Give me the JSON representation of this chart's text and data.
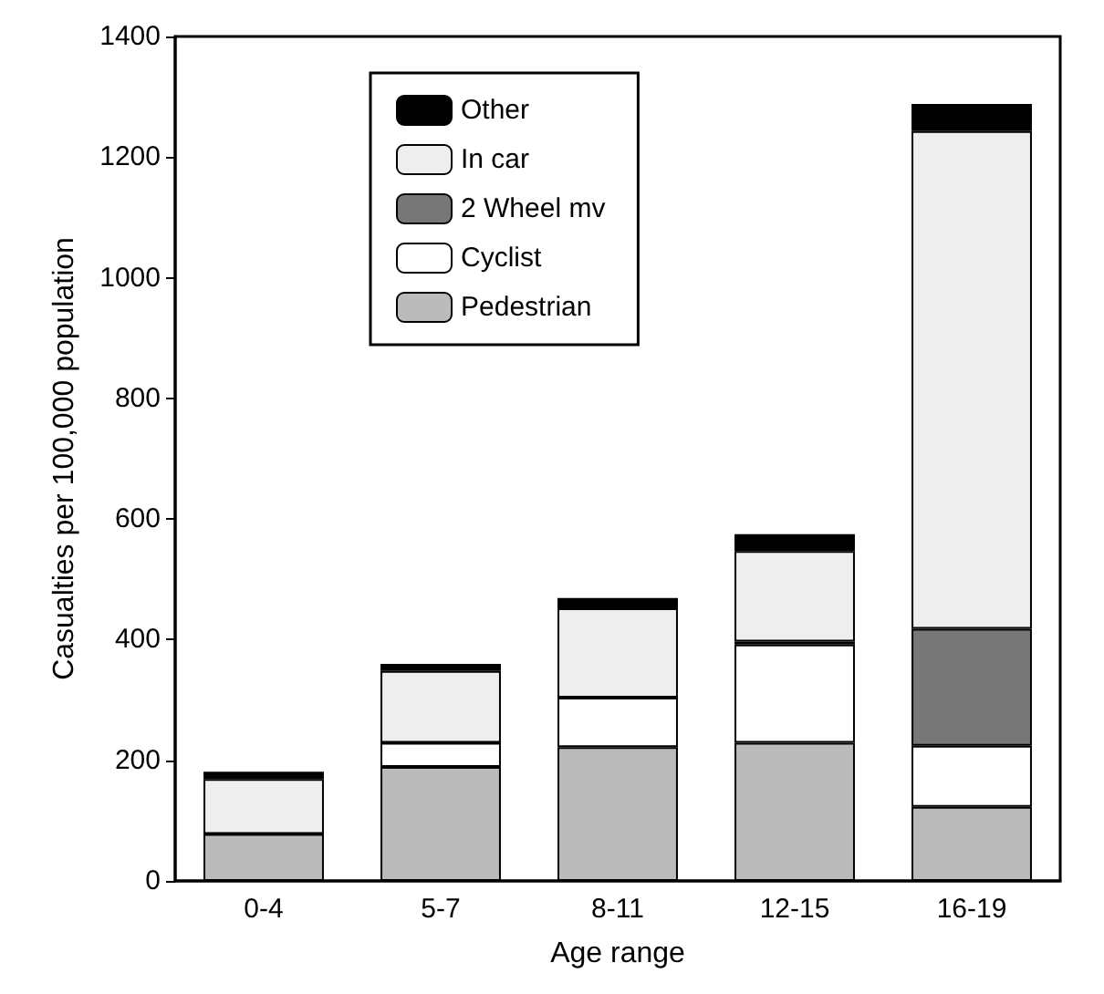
{
  "chart_data": {
    "type": "bar",
    "xlabel": "Age range",
    "ylabel": "Casualties per 100,000 population",
    "categories": [
      "0-4",
      "5-7",
      "8-11",
      "12-15",
      "16-19"
    ],
    "stacked": true,
    "series": [
      {
        "name": "Pedestrian",
        "color": "#bbbbbb",
        "values": [
          78,
          189,
          222,
          229,
          123
        ]
      },
      {
        "name": "Cyclist",
        "color": "#ffffff",
        "values": [
          0,
          40,
          82,
          163,
          101
        ]
      },
      {
        "name": "2 Wheel mv",
        "color": "#777777",
        "values": [
          0,
          0,
          0,
          5,
          194
        ]
      },
      {
        "name": "In car",
        "color": "#eeeeee",
        "values": [
          91,
          119,
          148,
          150,
          825
        ]
      },
      {
        "name": "Other",
        "color": "#000000",
        "values": [
          12,
          12,
          17,
          28,
          45
        ]
      }
    ],
    "ylim": [
      0,
      1400
    ],
    "yticks": [
      0,
      200,
      400,
      600,
      800,
      1000,
      1200,
      1400
    ],
    "grid": false,
    "legend": "top left"
  }
}
